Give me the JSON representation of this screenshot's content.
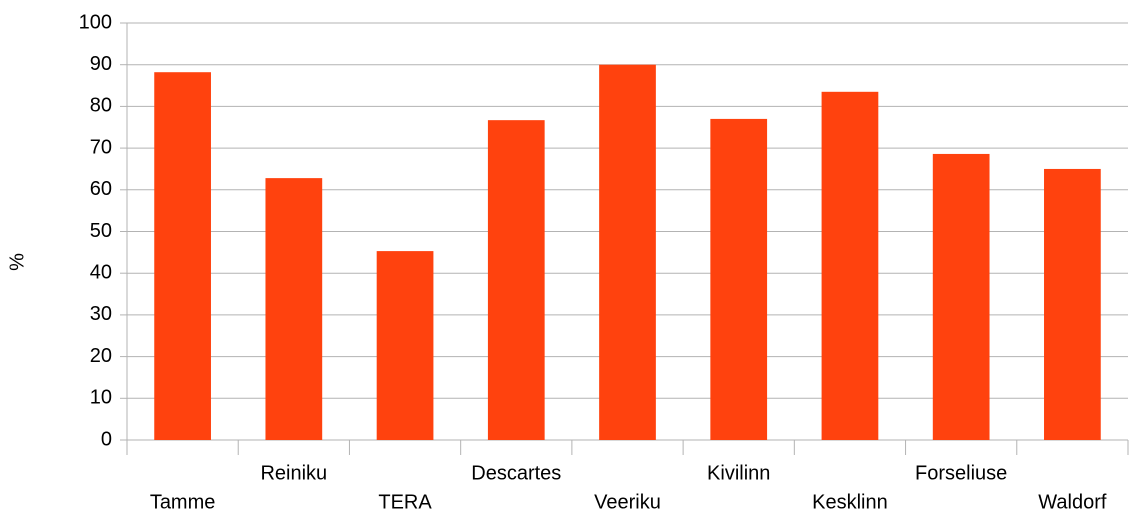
{
  "chart_data": {
    "type": "bar",
    "y_label": "%",
    "categories": [
      "Tamme",
      "Reiniku",
      "TERA",
      "Descartes",
      "Veeriku",
      "Kivilinn",
      "Kesklinn",
      "Forseliuse",
      "Waldorf"
    ],
    "values": [
      88.2,
      62.8,
      45.3,
      76.7,
      90,
      77,
      83.5,
      68.6,
      65
    ],
    "color": "#ff420e",
    "ylim": [
      0,
      100
    ],
    "yticks": [
      0,
      10,
      20,
      30,
      40,
      50,
      60,
      70,
      80,
      90,
      100
    ],
    "grid": true
  }
}
